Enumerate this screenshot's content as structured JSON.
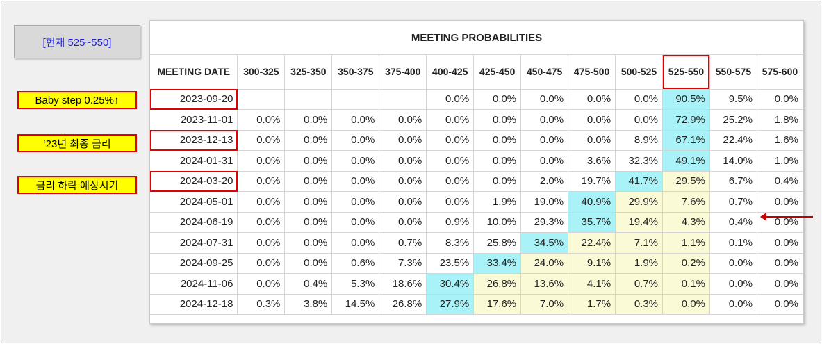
{
  "current": {
    "label": "[현재 525~550]"
  },
  "callouts": [
    {
      "text": "Baby step 0.25%↑"
    },
    {
      "text": "‘23년 최종 금리"
    },
    {
      "text": "금리 하락 예상시기"
    }
  ],
  "colors": {
    "cyan": "#a9f2f7",
    "yellow": "#fbfad6",
    "highlight_border": "#e00000",
    "arrow": "#c00000",
    "label_text": "#1f1fd6",
    "callout_fill": "#ffff00"
  },
  "chart_data": {
    "type": "table",
    "title": "MEETING PROBABILITIES",
    "row_header": "MEETING DATE",
    "columns": [
      "300-325",
      "325-350",
      "350-375",
      "375-400",
      "400-425",
      "425-450",
      "450-475",
      "475-500",
      "500-525",
      "525-550",
      "550-575",
      "575-600"
    ],
    "rows": [
      {
        "date": "2023-09-20",
        "values": [
          "",
          "",
          "",
          "",
          "0.0%",
          "0.0%",
          "0.0%",
          "0.0%",
          "0.0%",
          "90.5%",
          "9.5%",
          "0.0%"
        ]
      },
      {
        "date": "2023-11-01",
        "values": [
          "0.0%",
          "0.0%",
          "0.0%",
          "0.0%",
          "0.0%",
          "0.0%",
          "0.0%",
          "0.0%",
          "0.0%",
          "72.9%",
          "25.2%",
          "1.8%"
        ]
      },
      {
        "date": "2023-12-13",
        "values": [
          "0.0%",
          "0.0%",
          "0.0%",
          "0.0%",
          "0.0%",
          "0.0%",
          "0.0%",
          "0.0%",
          "8.9%",
          "67.1%",
          "22.4%",
          "1.6%"
        ]
      },
      {
        "date": "2024-01-31",
        "values": [
          "0.0%",
          "0.0%",
          "0.0%",
          "0.0%",
          "0.0%",
          "0.0%",
          "0.0%",
          "3.6%",
          "32.3%",
          "49.1%",
          "14.0%",
          "1.0%"
        ]
      },
      {
        "date": "2024-03-20",
        "values": [
          "0.0%",
          "0.0%",
          "0.0%",
          "0.0%",
          "0.0%",
          "0.0%",
          "2.0%",
          "19.7%",
          "41.7%",
          "29.5%",
          "6.7%",
          "0.4%"
        ]
      },
      {
        "date": "2024-05-01",
        "values": [
          "0.0%",
          "0.0%",
          "0.0%",
          "0.0%",
          "0.0%",
          "1.9%",
          "19.0%",
          "40.9%",
          "29.9%",
          "7.6%",
          "0.7%",
          "0.0%"
        ]
      },
      {
        "date": "2024-06-19",
        "values": [
          "0.0%",
          "0.0%",
          "0.0%",
          "0.0%",
          "0.9%",
          "10.0%",
          "29.3%",
          "35.7%",
          "19.4%",
          "4.3%",
          "0.4%",
          "0.0%"
        ]
      },
      {
        "date": "2024-07-31",
        "values": [
          "0.0%",
          "0.0%",
          "0.0%",
          "0.7%",
          "8.3%",
          "25.8%",
          "34.5%",
          "22.4%",
          "7.1%",
          "1.1%",
          "0.1%",
          "0.0%"
        ]
      },
      {
        "date": "2024-09-25",
        "values": [
          "0.0%",
          "0.0%",
          "0.6%",
          "7.3%",
          "23.5%",
          "33.4%",
          "24.0%",
          "9.1%",
          "1.9%",
          "0.2%",
          "0.0%",
          "0.0%"
        ]
      },
      {
        "date": "2024-11-06",
        "values": [
          "0.0%",
          "0.4%",
          "5.3%",
          "18.6%",
          "30.4%",
          "26.8%",
          "13.6%",
          "4.1%",
          "0.7%",
          "0.1%",
          "0.0%",
          "0.0%"
        ]
      },
      {
        "date": "2024-12-18",
        "values": [
          "0.3%",
          "3.8%",
          "14.5%",
          "26.8%",
          "27.9%",
          "17.6%",
          "7.0%",
          "1.7%",
          "0.3%",
          "0.0%",
          "0.0%",
          "0.0%"
        ]
      }
    ],
    "highlighted_column": "525-550",
    "highlighted_dates": [
      "2023-09-20",
      "2023-12-13",
      "2024-03-20"
    ]
  }
}
